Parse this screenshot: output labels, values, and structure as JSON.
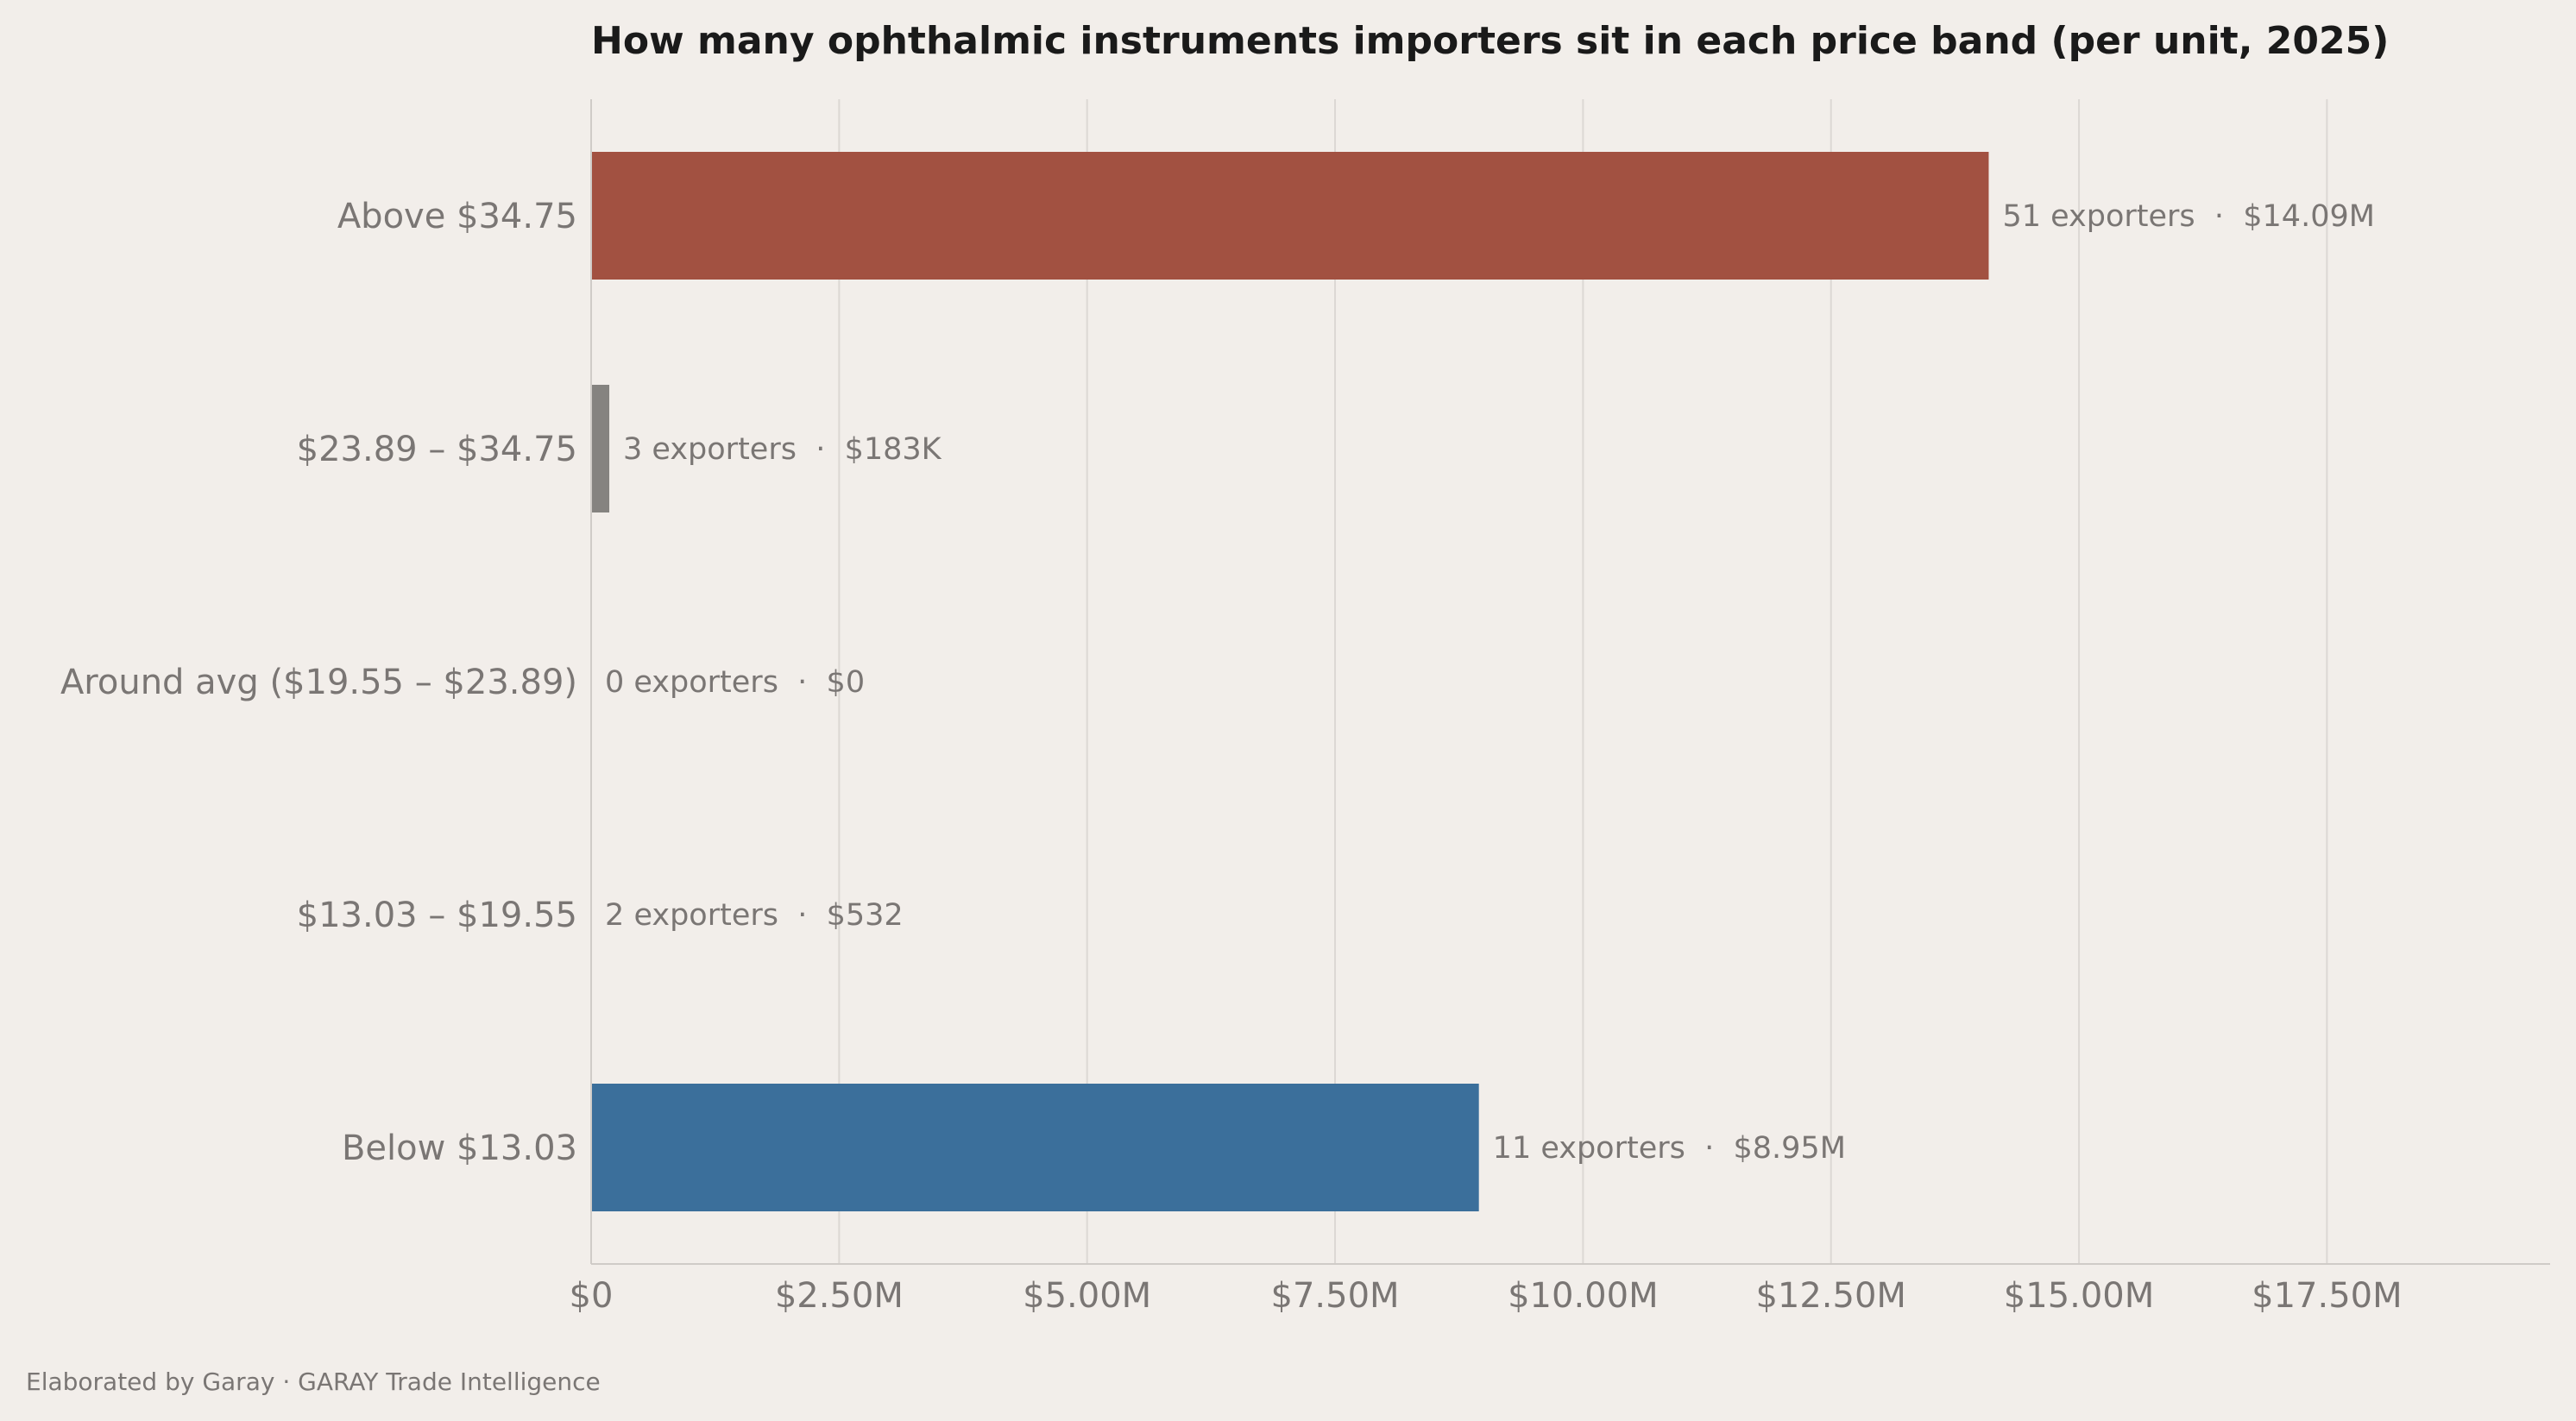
{
  "chart_data": {
    "type": "bar",
    "orientation": "horizontal",
    "title": "How many ophthalmic instruments importers sit in each price band (per unit, 2025)",
    "xlabel": "",
    "ylabel": "",
    "xlim": [
      0,
      19750000
    ],
    "x_ticks": [
      0,
      2500000,
      5000000,
      7500000,
      10000000,
      12500000,
      15000000,
      17500000
    ],
    "x_tick_labels": [
      "$0",
      "$2.50M",
      "$5.00M",
      "$7.50M",
      "$10.00M",
      "$12.50M",
      "$15.00M",
      "$17.50M"
    ],
    "grid": "vertical",
    "categories": [
      "Above $34.75",
      "$23.89 – $34.75",
      "Around avg ($19.55 – $23.89)",
      "$13.03 – $19.55",
      "Below $13.03"
    ],
    "values": [
      14090000,
      183000,
      0,
      532,
      8950000
    ],
    "exporters": [
      51,
      3,
      0,
      2,
      11
    ],
    "data_labels": [
      "51 exporters  ·  $14.09M",
      "3 exporters  ·  $183K",
      "0 exporters  ·  $0",
      "2 exporters  ·  $532",
      "11 exporters  ·  $8.95M"
    ],
    "colors": [
      "#a25141",
      "#858380",
      "#858380",
      "#858380",
      "#3b6f9b"
    ]
  },
  "footer": {
    "text": "Elaborated by Garay  ·  GARAY Trade Intelligence"
  },
  "colors": {
    "background": "#f2eeea",
    "gridline": "#dcd8d4",
    "axis": "#cfcbc7",
    "muted_text": "#7a7674",
    "title_text": "#1a1a1a"
  }
}
